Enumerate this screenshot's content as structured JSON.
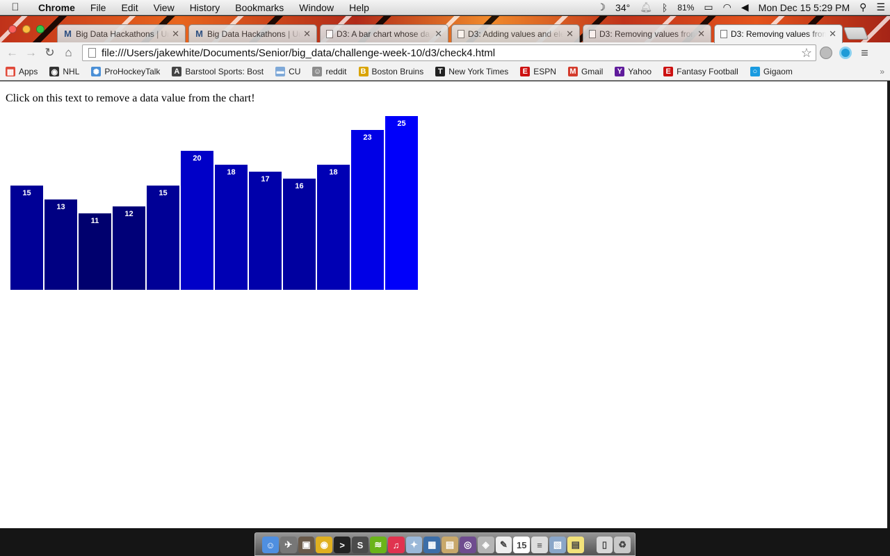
{
  "menubar": {
    "app_name": "Chrome",
    "menus": [
      "File",
      "Edit",
      "View",
      "History",
      "Bookmarks",
      "Window",
      "Help"
    ],
    "weather": "34°",
    "battery": "81%",
    "clock": "Mon Dec 15  5:29 PM"
  },
  "tabs": [
    {
      "title": "Big Data Hackathons | Ur",
      "icon": "M",
      "icon_color": "#1f4f8a"
    },
    {
      "title": "Big Data Hackathons | Ur",
      "icon": "M",
      "icon_color": "#1f4f8a"
    },
    {
      "title": "D3: A bar chart whose da",
      "icon": "",
      "icon_color": ""
    },
    {
      "title": "D3: Adding values and ele",
      "icon": "",
      "icon_color": ""
    },
    {
      "title": "D3: Removing values from",
      "icon": "",
      "icon_color": ""
    },
    {
      "title": "D3: Removing values from",
      "icon": "",
      "icon_color": "",
      "active": true
    }
  ],
  "toolbar": {
    "url": "file:///Users/jakewhite/Documents/Senior/big_data/challenge-week-10/d3/check4.html"
  },
  "bookmarks": [
    {
      "label": "Apps",
      "icon_color": "#e04a3a",
      "glyph": "▦"
    },
    {
      "label": "NHL",
      "icon_color": "#333333",
      "glyph": "◉"
    },
    {
      "label": "ProHockeyTalk",
      "icon_color": "#4a8fd6",
      "glyph": "✺"
    },
    {
      "label": "Barstool Sports: Bost",
      "icon_color": "#444444",
      "glyph": "A"
    },
    {
      "label": "CU",
      "icon_color": "#7fa9d8",
      "glyph": "▬"
    },
    {
      "label": "reddit",
      "icon_color": "#8c8c8c",
      "glyph": "☺"
    },
    {
      "label": "Boston Bruins",
      "icon_color": "#d9a400",
      "glyph": "B"
    },
    {
      "label": "New York Times",
      "icon_color": "#222222",
      "glyph": "T"
    },
    {
      "label": "ESPN",
      "icon_color": "#cc1111",
      "glyph": "E"
    },
    {
      "label": "Gmail",
      "icon_color": "#d33b2c",
      "glyph": "M"
    },
    {
      "label": "Yahoo",
      "icon_color": "#5f1b9b",
      "glyph": "Y"
    },
    {
      "label": "Fantasy Football",
      "icon_color": "#cc1111",
      "glyph": "E"
    },
    {
      "label": "Gigaom",
      "icon_color": "#1a9be0",
      "glyph": "○"
    }
  ],
  "page": {
    "instruction": "Click on this text to remove a data value from the chart!"
  },
  "chart_data": {
    "type": "bar",
    "values": [
      15,
      13,
      11,
      12,
      15,
      20,
      18,
      17,
      16,
      18,
      23,
      25
    ],
    "data_labels": true,
    "color_scale": "blue, brighter for larger values"
  },
  "dock": {
    "apps": [
      {
        "name": "finder-icon",
        "color": "#4f8fe0",
        "glyph": "☺"
      },
      {
        "name": "launchpad-icon",
        "color": "#777777",
        "glyph": "✈"
      },
      {
        "name": "photos-icon",
        "color": "#6a5a4a",
        "glyph": "▣"
      },
      {
        "name": "chrome-icon",
        "color": "#e0b020",
        "glyph": "◉"
      },
      {
        "name": "terminal-icon",
        "color": "#222222",
        "glyph": ">"
      },
      {
        "name": "sublime-icon",
        "color": "#4b4b4b",
        "glyph": "S"
      },
      {
        "name": "spotify-icon",
        "color": "#6ab41a",
        "glyph": "≋"
      },
      {
        "name": "itunes-icon",
        "color": "#e0334f",
        "glyph": "♫"
      },
      {
        "name": "xcode-icon",
        "color": "#9ab8d8",
        "glyph": "✦"
      },
      {
        "name": "virtualbox-icon",
        "color": "#3c6ea8",
        "glyph": "▦"
      },
      {
        "name": "preview-icon",
        "color": "#c8a86a",
        "glyph": "▤"
      },
      {
        "name": "github-icon",
        "color": "#6f4c8f",
        "glyph": "◎"
      },
      {
        "name": "grapher-icon",
        "color": "#b5b5b5",
        "glyph": "◈"
      },
      {
        "name": "textedit-icon",
        "color": "#eeeeee",
        "glyph": "✎"
      },
      {
        "name": "calendar-icon",
        "color": "#ffffff",
        "glyph": "15"
      },
      {
        "name": "notes-list-icon",
        "color": "#dddddd",
        "glyph": "≡"
      },
      {
        "name": "preview-photos-icon",
        "color": "#8aa6c8",
        "glyph": "▧"
      },
      {
        "name": "stickies-icon",
        "color": "#f2e27a",
        "glyph": "▤"
      },
      {
        "name": "documents-icon",
        "color": "#d8d8d8",
        "glyph": "▯"
      },
      {
        "name": "trash-icon",
        "color": "#c9c9c9",
        "glyph": "♻"
      }
    ]
  }
}
